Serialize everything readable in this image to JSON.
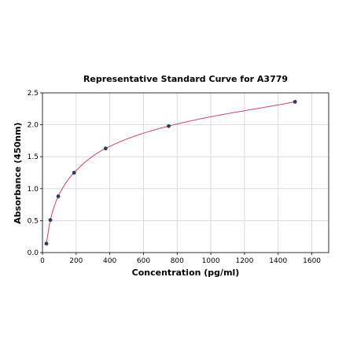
{
  "chart_data": {
    "type": "scatter",
    "title": "Representative Standard Curve for A3779",
    "xlabel": "Concentration (pg/ml)",
    "ylabel": "Absorbance (450nm)",
    "xlim": [
      0,
      1700
    ],
    "ylim": [
      0,
      2.5
    ],
    "xticks": [
      0,
      200,
      400,
      600,
      800,
      1000,
      1200,
      1400,
      1600
    ],
    "yticks": [
      0.0,
      0.5,
      1.0,
      1.5,
      2.0,
      2.5
    ],
    "xtick_labels": [
      "0",
      "200",
      "400",
      "600",
      "800",
      "1000",
      "1200",
      "1400",
      "1600"
    ],
    "ytick_labels": [
      "0.0",
      "0.5",
      "1.0",
      "1.5",
      "2.0",
      "2.5"
    ],
    "grid": true,
    "series": [
      {
        "points": [
          {
            "x": 23.4,
            "y": 0.14
          },
          {
            "x": 46.9,
            "y": 0.51
          },
          {
            "x": 93.8,
            "y": 0.88
          },
          {
            "x": 187.5,
            "y": 1.25
          },
          {
            "x": 375,
            "y": 1.63
          },
          {
            "x": 750,
            "y": 1.98
          },
          {
            "x": 1500,
            "y": 2.36
          }
        ],
        "marker_color": "#2f3a5a",
        "fit_curve": "smooth",
        "curve_color": "#c0486e"
      }
    ]
  }
}
